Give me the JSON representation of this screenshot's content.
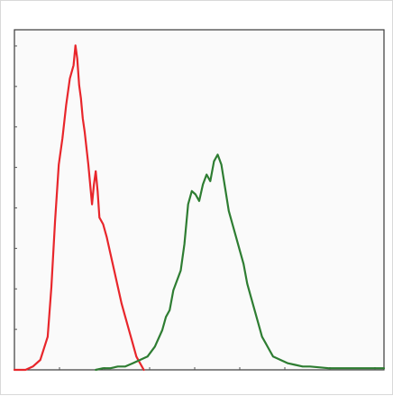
{
  "chart_data": {
    "type": "line",
    "title": "",
    "xlabel": "",
    "ylabel": "",
    "grid": false,
    "xlim": [
      0,
      100
    ],
    "ylim": [
      0,
      100
    ],
    "series": [
      {
        "color": "#e8262b",
        "x": [
          0,
          3,
          5,
          7,
          9,
          10,
          11,
          12,
          13,
          14,
          15,
          16,
          16.5,
          17,
          17.5,
          18,
          18.5,
          19,
          20,
          21,
          21.5,
          22,
          22.5,
          23,
          24,
          25,
          26,
          27,
          28,
          29,
          30,
          31,
          32,
          33,
          34,
          35
        ],
        "y": [
          0,
          0,
          1,
          3,
          10,
          25,
          45,
          62,
          70,
          80,
          88,
          92,
          98,
          94,
          86,
          82,
          76,
          72,
          62,
          50,
          56,
          60,
          54,
          46,
          44,
          40,
          35,
          30,
          25,
          20,
          16,
          12,
          8,
          4,
          2,
          0
        ]
      },
      {
        "color": "#2e7d32",
        "x": [
          22,
          24,
          26,
          28,
          30,
          32,
          34,
          36,
          38,
          40,
          41,
          42,
          43,
          44,
          45,
          46,
          47,
          48,
          49,
          50,
          51,
          52,
          53,
          54,
          55,
          56,
          57,
          58,
          59,
          60,
          61,
          62,
          63,
          64,
          65,
          66,
          67,
          68,
          69,
          70,
          72,
          74,
          76,
          78,
          80,
          85,
          90,
          95,
          100
        ],
        "y": [
          0,
          0.5,
          0.5,
          1,
          1,
          2,
          3,
          4,
          7,
          12,
          16,
          18,
          24,
          27,
          30,
          38,
          50,
          54,
          53,
          51,
          56,
          59,
          57,
          63,
          65,
          62,
          55,
          48,
          44,
          40,
          36,
          32,
          26,
          22,
          18,
          14,
          10,
          8,
          6,
          4,
          3,
          2,
          1.5,
          1,
          1,
          0.5,
          0.5,
          0.5,
          0.5
        ]
      }
    ]
  }
}
